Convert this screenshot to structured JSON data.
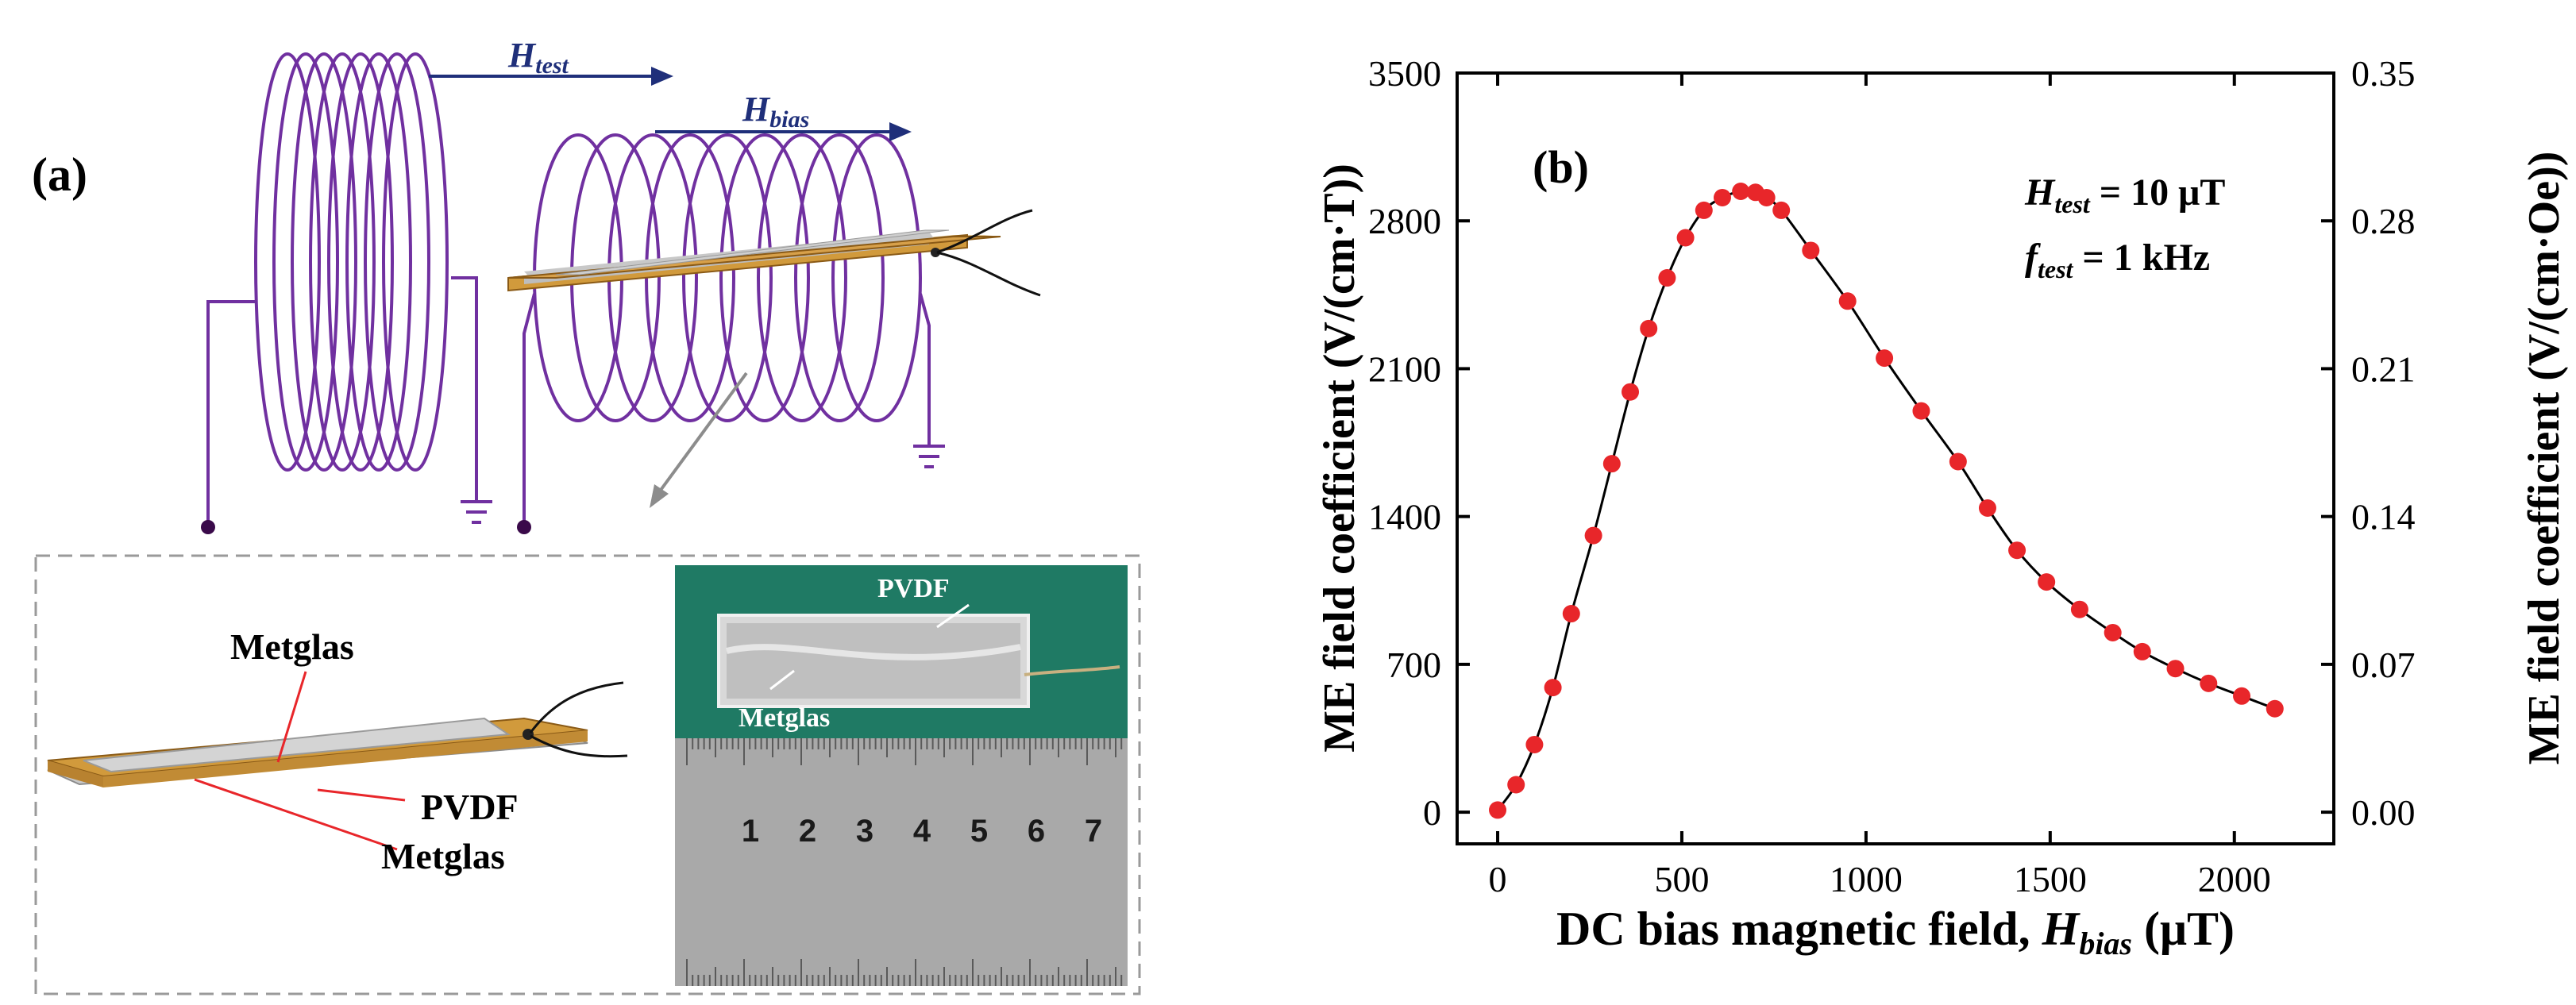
{
  "panel_a": {
    "label": "(a)",
    "h_test": {
      "base": "H",
      "sub": "test"
    },
    "h_bias": {
      "base": "H",
      "sub": "bias"
    },
    "inset": {
      "top_label": "Metglas",
      "middle_label": "PVDF",
      "bottom_label": "Metglas",
      "photo_pvdf_label": "PVDF",
      "photo_metglas_label": "Metglas",
      "ruler_numbers": [
        "1",
        "2",
        "3",
        "4",
        "5",
        "6",
        "7"
      ]
    },
    "colors": {
      "coil": "#7030a0",
      "arrow": "#1f2f7a",
      "substrate": "#d19a3c",
      "metglas": "#c8c8c8",
      "leader": "#e8262a",
      "photo_bg": "#1f7a64"
    }
  },
  "chart_data": {
    "type": "scatter",
    "panel_label": "(b)",
    "xlabel": {
      "prefix": "DC bias magnetic field, ",
      "var": "H",
      "sub": "bias",
      "unit": " (μT)"
    },
    "ylabel_left": "ME field coefficient (V/(cm·T))",
    "ylabel_right": "ME field coefficient (V/(cm·Oe))",
    "xlim": [
      -110,
      2270
    ],
    "ylim": [
      -150,
      3500
    ],
    "xticks": [
      0,
      500,
      1000,
      1500,
      2000
    ],
    "yticks_left": [
      0,
      700,
      1400,
      2100,
      2800,
      3500
    ],
    "yticks_right": [
      "0.00",
      "0.07",
      "0.14",
      "0.21",
      "0.28",
      "0.35"
    ],
    "annotation_1": {
      "var": "H",
      "sub": "test",
      "rest": " = 10 μT"
    },
    "annotation_2": {
      "var": "f",
      "sub": "test",
      "rest": " = 1 kHz"
    },
    "series": [
      {
        "name": "ME coefficient",
        "marker_color": "#e8262a",
        "line_color": "#000000",
        "x": [
          0,
          50,
          100,
          150,
          200,
          260,
          310,
          360,
          410,
          460,
          510,
          560,
          610,
          660,
          700,
          730,
          770,
          850,
          950,
          1050,
          1150,
          1250,
          1330,
          1410,
          1490,
          1580,
          1670,
          1750,
          1840,
          1930,
          2020,
          2110
        ],
        "y": [
          10,
          130,
          320,
          590,
          940,
          1310,
          1650,
          1990,
          2290,
          2530,
          2720,
          2850,
          2910,
          2940,
          2935,
          2910,
          2850,
          2660,
          2420,
          2150,
          1900,
          1660,
          1440,
          1240,
          1090,
          960,
          850,
          760,
          680,
          610,
          550,
          490
        ]
      }
    ]
  }
}
